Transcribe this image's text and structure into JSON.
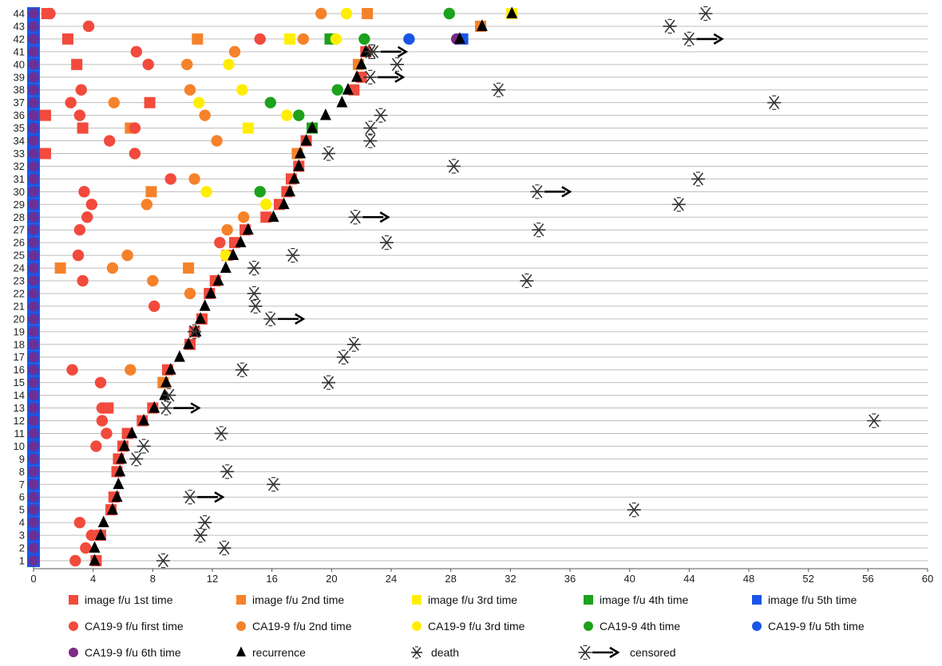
{
  "chart_data": {
    "type": "scatter",
    "title": "",
    "xlabel": "",
    "ylabel": "",
    "xlim": [
      0,
      60
    ],
    "xticks": [
      0,
      4,
      8,
      12,
      16,
      20,
      24,
      28,
      32,
      36,
      40,
      44,
      48,
      52,
      56,
      60
    ],
    "ylim": [
      1,
      44
    ],
    "ytick_step": 1,
    "grid": "horizontal",
    "legend_position": "bottom",
    "colors": {
      "red": "#f24a3c",
      "orange": "#f5822a",
      "yellow": "#ffee00",
      "green": "#1ca21c",
      "blue": "#1a55e8",
      "purple": "#7b2a86",
      "black": "#000000",
      "gray": "#777777"
    },
    "legend": [
      {
        "label": "image f/u 1st time",
        "marker": "square",
        "color": "#f24a3c"
      },
      {
        "label": "image f/u 2nd time",
        "marker": "square",
        "color": "#f5822a"
      },
      {
        "label": "image f/u 3rd time",
        "marker": "square",
        "color": "#ffee00"
      },
      {
        "label": "image f/u 4th time",
        "marker": "square",
        "color": "#1ca21c"
      },
      {
        "label": "image f/u 5th time",
        "marker": "square",
        "color": "#1a55e8"
      },
      {
        "label": "CA19-9 f/u first time",
        "marker": "circle",
        "color": "#f24a3c"
      },
      {
        "label": "CA19-9 f/u 2nd time",
        "marker": "circle",
        "color": "#f5822a"
      },
      {
        "label": "CA19-9 f/u 3rd time",
        "marker": "circle",
        "color": "#ffee00"
      },
      {
        "label": "CA19-9 4th time",
        "marker": "circle",
        "color": "#1ca21c"
      },
      {
        "label": "CA19-9 f/u 5th time",
        "marker": "circle",
        "color": "#1a55e8"
      },
      {
        "label": "CA19-9 f/u 6th time",
        "marker": "circle",
        "color": "#7b2a86"
      },
      {
        "label": "recurrence",
        "marker": "triangle",
        "color": "#000000"
      },
      {
        "label": "death",
        "marker": "death",
        "color": "#000000"
      },
      {
        "label": "censored",
        "marker": "censored",
        "color": "#000000"
      }
    ],
    "baseline_markers": {
      "x": 0,
      "rows_from": 1,
      "rows_to": 44
    },
    "series": [
      {
        "name": "image f/u 1st time",
        "marker": "square",
        "color": "#f24a3c",
        "points": [
          [
            4.2,
            1
          ],
          [
            4.5,
            3
          ],
          [
            5.2,
            5
          ],
          [
            5.4,
            6
          ],
          [
            5.6,
            8
          ],
          [
            5.7,
            9
          ],
          [
            6,
            10
          ],
          [
            6.3,
            11
          ],
          [
            7.3,
            12
          ],
          [
            8,
            13
          ],
          [
            5,
            13
          ],
          [
            8.7,
            15
          ],
          [
            9,
            16
          ],
          [
            10.5,
            18
          ],
          [
            10.8,
            19
          ],
          [
            11.3,
            20
          ],
          [
            11.8,
            22
          ],
          [
            12.2,
            23
          ],
          [
            13,
            25
          ],
          [
            13.5,
            26
          ],
          [
            14.2,
            27
          ],
          [
            15.6,
            28
          ],
          [
            16.5,
            29
          ],
          [
            17,
            30
          ],
          [
            17.3,
            31
          ],
          [
            17.8,
            32
          ],
          [
            0.8,
            33
          ],
          [
            18.3,
            34
          ],
          [
            3.3,
            35
          ],
          [
            0.8,
            36
          ],
          [
            7.8,
            37
          ],
          [
            21.5,
            38
          ],
          [
            22,
            39
          ],
          [
            2.9,
            40
          ],
          [
            22.3,
            41
          ],
          [
            2.3,
            42
          ],
          [
            0.9,
            44
          ]
        ]
      },
      {
        "name": "image f/u 2nd time",
        "marker": "square",
        "color": "#f5822a",
        "points": [
          [
            1.8,
            24
          ],
          [
            10.4,
            24
          ],
          [
            7.9,
            30
          ],
          [
            8.7,
            15
          ],
          [
            6.5,
            35
          ],
          [
            17.7,
            33
          ],
          [
            21.8,
            40
          ],
          [
            11,
            42
          ],
          [
            30,
            43
          ],
          [
            22.4,
            44
          ]
        ]
      },
      {
        "name": "image f/u 3rd time",
        "marker": "square",
        "color": "#ffee00",
        "points": [
          [
            14.4,
            35
          ],
          [
            17.2,
            42
          ],
          [
            32.1,
            44
          ]
        ]
      },
      {
        "name": "image f/u 4th time",
        "marker": "square",
        "color": "#1ca21c",
        "points": [
          [
            18.7,
            35
          ],
          [
            19.9,
            42
          ]
        ]
      },
      {
        "name": "image f/u 5th time",
        "marker": "square",
        "color": "#1a55e8",
        "points": [
          [
            28.8,
            42
          ]
        ]
      },
      {
        "name": "CA19-9 f/u first time",
        "marker": "circle",
        "color": "#f24a3c",
        "points": [
          [
            2.8,
            1
          ],
          [
            3.5,
            2
          ],
          [
            3.9,
            3
          ],
          [
            3.1,
            4
          ],
          [
            4.2,
            10
          ],
          [
            4.9,
            11
          ],
          [
            4.6,
            12
          ],
          [
            4.6,
            13
          ],
          [
            4.5,
            15
          ],
          [
            2.6,
            16
          ],
          [
            8.1,
            21
          ],
          [
            3.3,
            23
          ],
          [
            3,
            25
          ],
          [
            12.5,
            26
          ],
          [
            3.1,
            27
          ],
          [
            3.6,
            28
          ],
          [
            3.9,
            29
          ],
          [
            3.4,
            30
          ],
          [
            9.2,
            31
          ],
          [
            6.8,
            33
          ],
          [
            5.1,
            34
          ],
          [
            6.8,
            35
          ],
          [
            3.1,
            36
          ],
          [
            2.5,
            37
          ],
          [
            3.2,
            38
          ],
          [
            7.7,
            40
          ],
          [
            6.9,
            41
          ],
          [
            15.2,
            42
          ],
          [
            3.7,
            43
          ],
          [
            1.1,
            44
          ]
        ]
      },
      {
        "name": "CA19-9 f/u 2nd time",
        "marker": "circle",
        "color": "#f5822a",
        "points": [
          [
            5.3,
            24
          ],
          [
            6.5,
            16
          ],
          [
            8,
            23
          ],
          [
            10.5,
            22
          ],
          [
            6.3,
            25
          ],
          [
            13,
            27
          ],
          [
            14.1,
            28
          ],
          [
            7.6,
            29
          ],
          [
            10.8,
            31
          ],
          [
            12.3,
            34
          ],
          [
            11.5,
            36
          ],
          [
            5.4,
            37
          ],
          [
            10.5,
            38
          ],
          [
            10.3,
            40
          ],
          [
            13.5,
            41
          ],
          [
            18.1,
            42
          ],
          [
            19.3,
            44
          ]
        ]
      },
      {
        "name": "CA19-9 f/u 3rd time",
        "marker": "circle",
        "color": "#ffee00",
        "points": [
          [
            12.9,
            25
          ],
          [
            15.6,
            29
          ],
          [
            11.6,
            30
          ],
          [
            17,
            36
          ],
          [
            11.1,
            37
          ],
          [
            14,
            38
          ],
          [
            13.1,
            40
          ],
          [
            20.3,
            42
          ],
          [
            21,
            44
          ]
        ]
      },
      {
        "name": "CA19-9 4th time",
        "marker": "circle",
        "color": "#1ca21c",
        "points": [
          [
            15.2,
            30
          ],
          [
            17.8,
            36
          ],
          [
            15.9,
            37
          ],
          [
            20.4,
            38
          ],
          [
            22.2,
            42
          ],
          [
            27.9,
            44
          ]
        ]
      },
      {
        "name": "CA19-9 f/u 5th time",
        "marker": "circle",
        "color": "#1a55e8",
        "points": [
          [
            25.2,
            42
          ]
        ]
      },
      {
        "name": "CA19-9 f/u 6th time",
        "marker": "circle",
        "color": "#7b2a86",
        "points": [
          [
            28.4,
            42
          ]
        ]
      },
      {
        "name": "recurrence",
        "marker": "triangle",
        "color": "#000000",
        "points": [
          [
            4.1,
            1
          ],
          [
            4.1,
            2
          ],
          [
            4.5,
            3
          ],
          [
            4.7,
            4
          ],
          [
            5.3,
            5
          ],
          [
            5.6,
            6
          ],
          [
            5.7,
            7
          ],
          [
            5.8,
            8
          ],
          [
            5.9,
            9
          ],
          [
            6.1,
            10
          ],
          [
            6.6,
            11
          ],
          [
            7.4,
            12
          ],
          [
            8.1,
            13
          ],
          [
            8.8,
            14
          ],
          [
            8.9,
            15
          ],
          [
            9.2,
            16
          ],
          [
            9.8,
            17
          ],
          [
            10.4,
            18
          ],
          [
            10.9,
            19
          ],
          [
            11.2,
            20
          ],
          [
            11.5,
            21
          ],
          [
            11.9,
            22
          ],
          [
            12.4,
            23
          ],
          [
            12.9,
            24
          ],
          [
            13.4,
            25
          ],
          [
            13.9,
            26
          ],
          [
            14.4,
            27
          ],
          [
            16.1,
            28
          ],
          [
            16.8,
            29
          ],
          [
            17.2,
            30
          ],
          [
            17.5,
            31
          ],
          [
            17.8,
            32
          ],
          [
            17.9,
            33
          ],
          [
            18.3,
            34
          ],
          [
            18.7,
            35
          ],
          [
            19.6,
            36
          ],
          [
            20.7,
            37
          ],
          [
            21.1,
            38
          ],
          [
            21.7,
            39
          ],
          [
            22,
            40
          ],
          [
            22.3,
            41
          ],
          [
            28.6,
            42
          ],
          [
            30.1,
            43
          ],
          [
            32.1,
            44
          ]
        ]
      },
      {
        "name": "death",
        "marker": "death",
        "color": "#000000",
        "points": [
          [
            8.7,
            1
          ],
          [
            12.8,
            2
          ],
          [
            11.2,
            3
          ],
          [
            11.5,
            4
          ],
          [
            40.3,
            5
          ],
          [
            16.1,
            7
          ],
          [
            13,
            8
          ],
          [
            6.9,
            9
          ],
          [
            7.4,
            10
          ],
          [
            12.6,
            11
          ],
          [
            56.4,
            12
          ],
          [
            9.1,
            14
          ],
          [
            19.8,
            15
          ],
          [
            14,
            16
          ],
          [
            20.8,
            17
          ],
          [
            21.5,
            18
          ],
          [
            10.8,
            19
          ],
          [
            14.9,
            21
          ],
          [
            14.8,
            22
          ],
          [
            33.1,
            23
          ],
          [
            14.8,
            24
          ],
          [
            17.4,
            25
          ],
          [
            23.7,
            26
          ],
          [
            33.9,
            27
          ],
          [
            43.3,
            29
          ],
          [
            44.6,
            31
          ],
          [
            28.2,
            32
          ],
          [
            19.8,
            33
          ],
          [
            22.6,
            34
          ],
          [
            22.6,
            35
          ],
          [
            23.3,
            36
          ],
          [
            49.7,
            37
          ],
          [
            31.2,
            38
          ],
          [
            24.4,
            40
          ],
          [
            22.6,
            41
          ],
          [
            42.7,
            43
          ],
          [
            45.1,
            44
          ]
        ]
      },
      {
        "name": "censored",
        "marker": "censored",
        "color": "#000000",
        "points": [
          [
            10.5,
            6
          ],
          [
            8.9,
            13
          ],
          [
            15.9,
            20
          ],
          [
            21.6,
            28
          ],
          [
            33.8,
            30
          ],
          [
            22.6,
            39
          ],
          [
            22.8,
            41
          ],
          [
            44,
            42
          ]
        ]
      }
    ]
  }
}
